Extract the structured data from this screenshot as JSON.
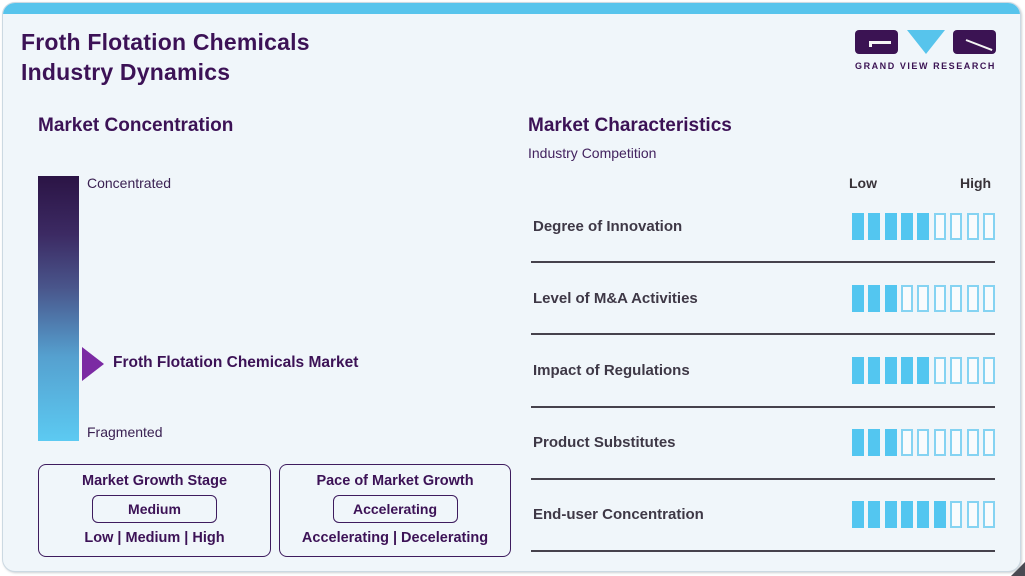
{
  "header": {
    "title_line1": "Froth Flotation Chemicals",
    "title_line2": "Industry Dynamics",
    "logo_text": "GRAND VIEW RESEARCH"
  },
  "market_concentration": {
    "heading": "Market Concentration",
    "scale_top": "Concentrated",
    "scale_bottom": "Fragmented",
    "marker_label": "Froth Flotation Chemicals Market",
    "marker_position_pct_from_top": 71
  },
  "growth_stage_box": {
    "title": "Market Growth Stage",
    "selected": "Medium",
    "options": "Low | Medium | High"
  },
  "pace_box": {
    "title": "Pace of Market Growth",
    "selected": "Accelerating",
    "options": "Accelerating | Decelerating"
  },
  "market_characteristics": {
    "heading": "Market Characteristics",
    "subheading": "Industry Competition",
    "scale_low": "Low",
    "scale_high": "High",
    "rows": [
      {
        "label": "Degree of Innovation",
        "filled": 5,
        "total": 9
      },
      {
        "label": "Level of M&A Activities",
        "filled": 3,
        "total": 9
      },
      {
        "label": "Impact of Regulations",
        "filled": 5,
        "total": 9
      },
      {
        "label": "Product Substitutes",
        "filled": 3,
        "total": 9
      },
      {
        "label": "End-user Concentration",
        "filled": 6,
        "total": 9
      }
    ]
  },
  "colors": {
    "accent_blue": "#57c4ec",
    "dark_purple": "#3c1256",
    "arrow_purple": "#7b2aa3",
    "bar_filled": "#53c6f0",
    "bar_empty_border": "#85d3f2",
    "card_background": "#f0f6fa",
    "gradient_top": "#2b1445",
    "gradient_bottom": "#5ccaf2"
  },
  "chart_data": {
    "type": "bar",
    "title": "Market Characteristics — Industry Competition",
    "categories": [
      "Degree of Innovation",
      "Level of M&A Activities",
      "Impact of Regulations",
      "Product Substitutes",
      "End-user Concentration"
    ],
    "values": [
      5,
      3,
      5,
      3,
      6
    ],
    "value_scale": {
      "min": 0,
      "max": 9,
      "low_label": "Low",
      "high_label": "High"
    },
    "orientation": "horizontal-rating-bars",
    "related_indicators": {
      "market_concentration_scale": [
        "Concentrated",
        "Fragmented"
      ],
      "market_concentration_marker": "Froth Flotation Chemicals Market",
      "market_concentration_marker_pct_from_concentrated": 71,
      "market_growth_stage": "Medium",
      "market_growth_stage_options": [
        "Low",
        "Medium",
        "High"
      ],
      "pace_of_market_growth": "Accelerating",
      "pace_options": [
        "Accelerating",
        "Decelerating"
      ]
    }
  }
}
